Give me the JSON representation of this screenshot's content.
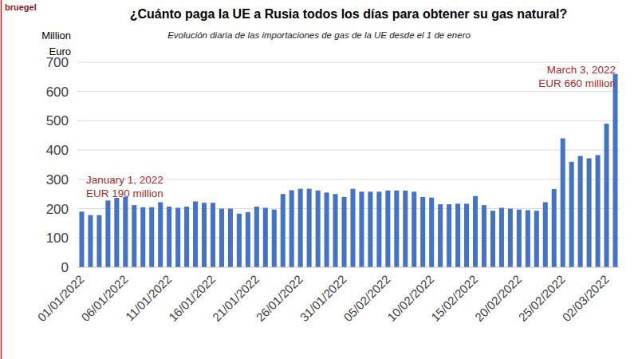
{
  "chart_data": {
    "type": "bar",
    "title": "¿Cuánto paga la UE a Rusia todos los días para obtener su gas natural?",
    "subtitle": "Evolución diaria de las importaciones de gas de la UE desde el 1 de enero",
    "source": "bruegel",
    "ylabel": "Million Euro",
    "annotations": [
      {
        "lines": [
          "January 1, 2022",
          "EUR 190 million"
        ]
      },
      {
        "lines": [
          "March 3, 2022",
          "EUR 660 million"
        ]
      }
    ],
    "categories": [
      "01/01/2022",
      null,
      null,
      null,
      null,
      "06/01/2022",
      null,
      null,
      null,
      null,
      "11/01/2022",
      null,
      null,
      null,
      null,
      "16/01/2022",
      null,
      null,
      null,
      null,
      "21/01/2022",
      null,
      null,
      null,
      null,
      "26/01/2022",
      null,
      null,
      null,
      null,
      "31/01/2022",
      null,
      null,
      null,
      null,
      "05/02/2022",
      null,
      null,
      null,
      null,
      "10/02/2022",
      null,
      null,
      null,
      null,
      "15/02/2022",
      null,
      null,
      null,
      null,
      "20/02/2022",
      null,
      null,
      null,
      null,
      "25/02/2022",
      null,
      null,
      null,
      null,
      "02/03/2022",
      null
    ],
    "values": [
      190,
      178,
      178,
      228,
      237,
      240,
      212,
      205,
      205,
      222,
      207,
      203,
      207,
      225,
      220,
      220,
      200,
      200,
      183,
      188,
      207,
      203,
      197,
      250,
      263,
      268,
      268,
      262,
      255,
      250,
      240,
      268,
      258,
      258,
      258,
      262,
      262,
      262,
      258,
      240,
      238,
      215,
      215,
      217,
      217,
      243,
      212,
      193,
      203,
      200,
      197,
      195,
      193,
      222,
      267,
      440,
      360,
      380,
      372,
      383,
      490,
      660
    ],
    "color": "#4472c4",
    "ylim": [
      0,
      700
    ],
    "yticks": [
      0,
      100,
      200,
      300,
      400,
      500,
      600,
      700
    ],
    "grid": true
  }
}
